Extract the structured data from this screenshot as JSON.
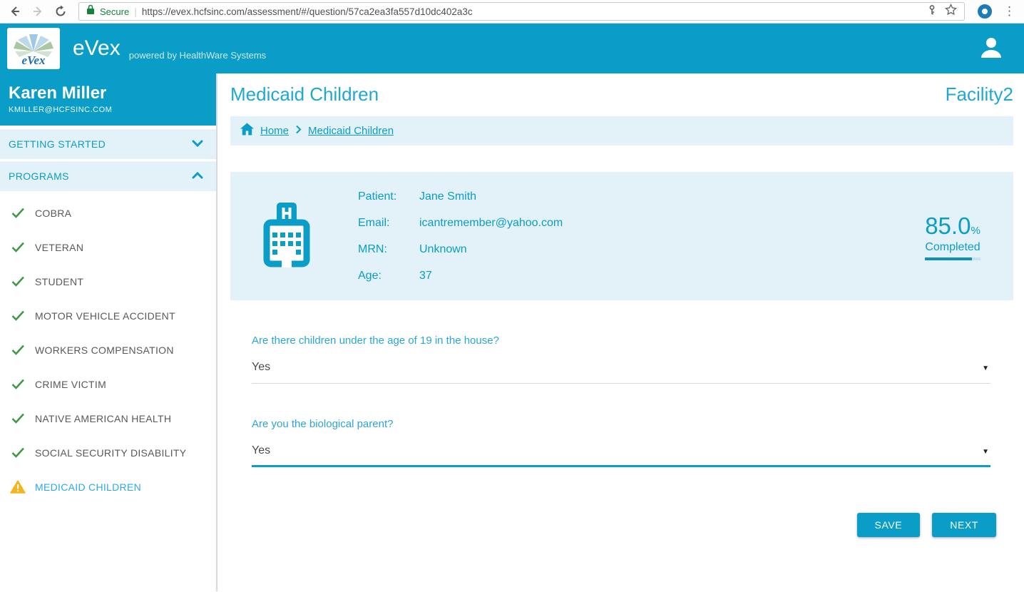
{
  "browser": {
    "security_label": "Secure",
    "url": "https://evex.hcfsinc.com/assessment/#/question/57ca2ea3fa557d10dc402a3c"
  },
  "header": {
    "logo_text": "eVex",
    "app_name": "eVex",
    "powered_by": "powered by HealthWare Systems"
  },
  "sidebar": {
    "user_name": "Karen Miller",
    "user_email": "KMILLER@HCFSINC.COM",
    "sections": [
      {
        "label": "GETTING STARTED",
        "state": "collapsed"
      },
      {
        "label": "PROGRAMS",
        "state": "expanded"
      }
    ],
    "programs": [
      {
        "label": "COBRA",
        "status": "complete"
      },
      {
        "label": "VETERAN",
        "status": "complete"
      },
      {
        "label": "STUDENT",
        "status": "complete"
      },
      {
        "label": "MOTOR VEHICLE ACCIDENT",
        "status": "complete"
      },
      {
        "label": "WORKERS COMPENSATION",
        "status": "complete"
      },
      {
        "label": "CRIME VICTIM",
        "status": "complete"
      },
      {
        "label": "NATIVE AMERICAN HEALTH",
        "status": "complete"
      },
      {
        "label": "SOCIAL SECURITY DISABILITY",
        "status": "complete"
      },
      {
        "label": "MEDICAID CHILDREN",
        "status": "warning",
        "active": true
      }
    ]
  },
  "main": {
    "title": "Medicaid Children",
    "facility": "Facility2",
    "breadcrumb": {
      "home": "Home",
      "current": "Medicaid Children"
    },
    "patient_rows": [
      {
        "label": "Patient:",
        "value": "Jane Smith"
      },
      {
        "label": "Email:",
        "value": "icantremember@yahoo.com"
      },
      {
        "label": "MRN:",
        "value": "Unknown"
      },
      {
        "label": "Age:",
        "value": "37"
      }
    ],
    "progress": {
      "value": "85.0",
      "unit": "%",
      "label": "Completed",
      "fraction": 0.85
    },
    "questions": [
      {
        "text": "Are there children under the age of 19 in the house?",
        "answer": "Yes",
        "focused": false
      },
      {
        "text": "Are you the biological parent?",
        "answer": "Yes",
        "focused": true
      }
    ],
    "actions": {
      "save": "SAVE",
      "next": "NEXT"
    }
  },
  "colors": {
    "brand_teal": "#0a9dc7",
    "panel_light_blue": "#e3f1f8",
    "success_green": "#3d9a47",
    "warning_amber": "#f7b21f",
    "active_item_blue": "#29abe2",
    "secure_green": "#188038"
  }
}
